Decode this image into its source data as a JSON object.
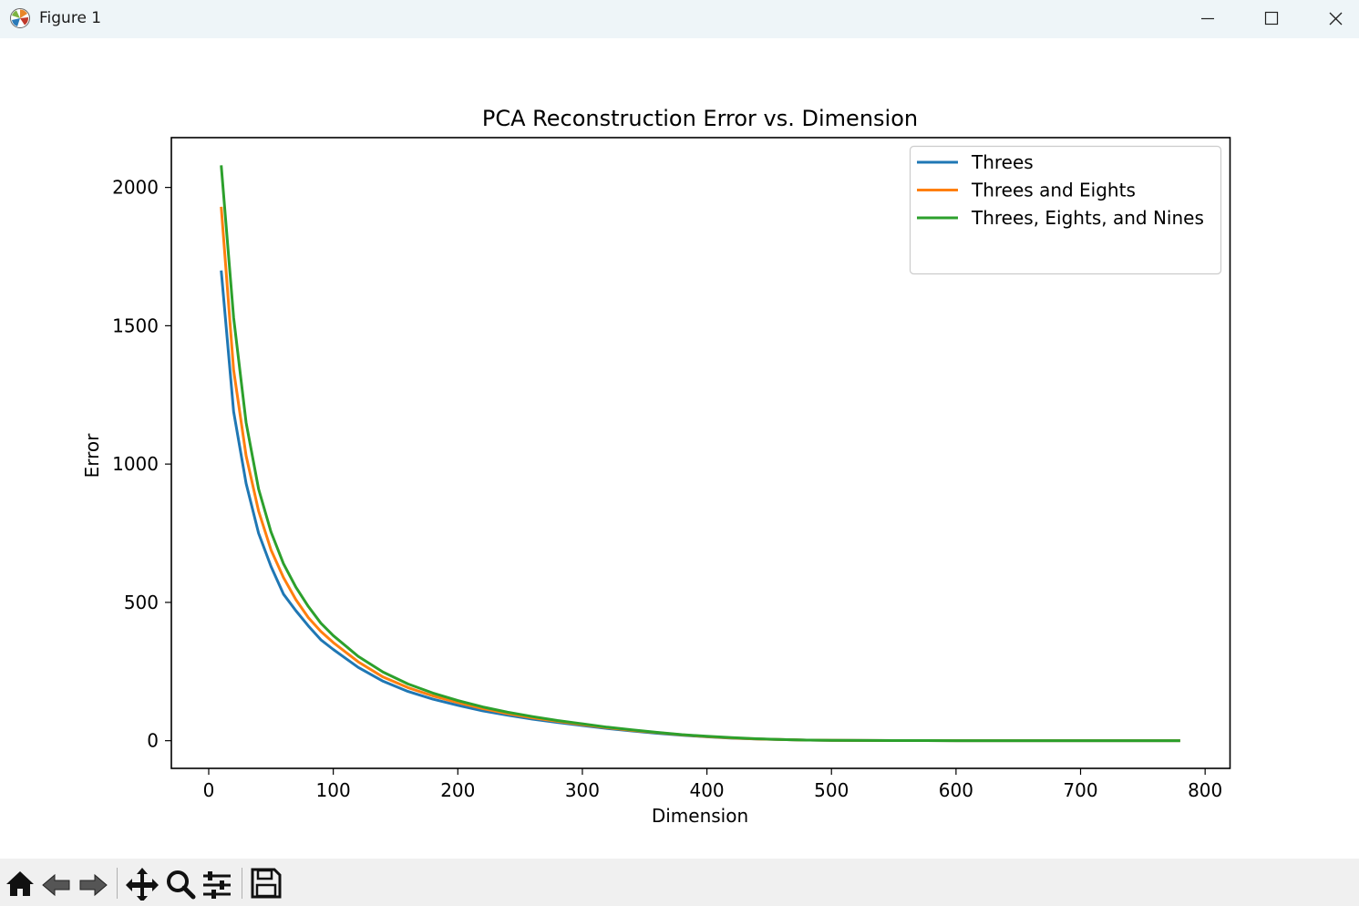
{
  "window": {
    "title": "Figure 1",
    "icons": [
      "matplotlib-app-icon",
      "minimize-icon",
      "maximize-icon",
      "close-icon"
    ]
  },
  "toolbar": {
    "icons": [
      "home-icon",
      "back-arrow-icon",
      "forward-arrow-icon",
      "pan-move-icon",
      "zoom-magnifier-icon",
      "configure-subplots-icon",
      "save-floppy-icon"
    ]
  },
  "chart_data": {
    "type": "line",
    "title": "PCA Reconstruction Error vs. Dimension",
    "xlabel": "Dimension",
    "ylabel": "Error",
    "xlim": [
      -30,
      820
    ],
    "ylim": [
      -100,
      2180
    ],
    "xticks": [
      0,
      100,
      200,
      300,
      400,
      500,
      600,
      700,
      800
    ],
    "yticks": [
      0,
      500,
      1000,
      1500,
      2000
    ],
    "grid": false,
    "legend_position": "upper right",
    "x": [
      10,
      20,
      30,
      40,
      50,
      60,
      70,
      80,
      90,
      100,
      120,
      140,
      160,
      180,
      200,
      220,
      240,
      260,
      280,
      300,
      320,
      340,
      360,
      380,
      400,
      420,
      440,
      460,
      480,
      500,
      550,
      600,
      650,
      700,
      750,
      780
    ],
    "series": [
      {
        "name": "Threes",
        "color": "#1f77b4",
        "values": [
          1700,
          1190,
          930,
          750,
          630,
          530,
          470,
          415,
          365,
          330,
          265,
          215,
          178,
          150,
          128,
          108,
          92,
          78,
          66,
          55,
          44,
          35,
          27,
          20,
          14,
          9,
          6,
          4,
          2,
          1,
          0.5,
          0.3,
          0.2,
          0.1,
          0,
          0
        ]
      },
      {
        "name": "Threes and Eights",
        "color": "#ff7f0e",
        "values": [
          1930,
          1340,
          1030,
          830,
          690,
          590,
          510,
          445,
          395,
          355,
          285,
          230,
          192,
          162,
          138,
          116,
          98,
          83,
          70,
          58,
          47,
          37,
          29,
          21,
          15,
          10,
          6,
          4,
          2,
          1,
          0.5,
          0.3,
          0.2,
          0.1,
          0,
          0
        ]
      },
      {
        "name": "Threes, Eights, and Nines",
        "color": "#2ca02c",
        "values": [
          2080,
          1530,
          1150,
          910,
          755,
          640,
          555,
          485,
          425,
          380,
          305,
          248,
          205,
          172,
          145,
          122,
          103,
          87,
          73,
          61,
          49,
          39,
          30,
          22,
          16,
          11,
          7,
          4,
          2,
          1,
          0.5,
          0.3,
          0.2,
          0.1,
          0,
          0
        ]
      }
    ]
  }
}
